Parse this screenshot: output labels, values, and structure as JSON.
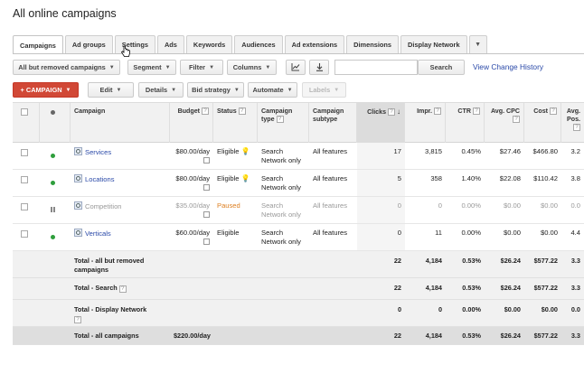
{
  "page": {
    "title": "All online campaigns"
  },
  "tabs": [
    {
      "label": "Campaigns",
      "active": true
    },
    {
      "label": "Ad groups"
    },
    {
      "label": "Settings"
    },
    {
      "label": "Ads"
    },
    {
      "label": "Keywords"
    },
    {
      "label": "Audiences"
    },
    {
      "label": "Ad extensions"
    },
    {
      "label": "Dimensions"
    },
    {
      "label": "Display Network"
    }
  ],
  "toolbar1": {
    "filter_select": "All but removed campaigns",
    "segment": "Segment",
    "filter": "Filter",
    "columns": "Columns",
    "search_value": "",
    "search_button": "Search",
    "view_change_history": "View Change History"
  },
  "toolbar2": {
    "campaign": "+ CAMPAIGN",
    "edit": "Edit",
    "details": "Details",
    "bid_strategy": "Bid strategy",
    "automate": "Automate",
    "labels": "Labels"
  },
  "columns": {
    "campaign": "Campaign",
    "budget": "Budget",
    "status": "Status",
    "campaign_type": "Campaign type",
    "campaign_subtype": "Campaign subtype",
    "clicks": "Clicks",
    "impr": "Impr.",
    "ctr": "CTR",
    "avg_cpc": "Avg. CPC",
    "cost": "Cost",
    "avg_pos": "Avg. Pos."
  },
  "rows": [
    {
      "name": "Services",
      "budget": "$80.00/day",
      "status": "Eligible",
      "type": "Search Network only",
      "subtype": "All features",
      "clicks": "17",
      "impr": "3,815",
      "ctr": "0.45%",
      "cpc": "$27.46",
      "cost": "$466.80",
      "pos": "3.2",
      "state": "enabled"
    },
    {
      "name": "Locations",
      "budget": "$80.00/day",
      "status": "Eligible",
      "type": "Search Network only",
      "subtype": "All features",
      "clicks": "5",
      "impr": "358",
      "ctr": "1.40%",
      "cpc": "$22.08",
      "cost": "$110.42",
      "pos": "3.8",
      "state": "enabled"
    },
    {
      "name": "Competition",
      "budget": "$35.00/day",
      "status": "Paused",
      "type": "Search Network only",
      "subtype": "All features",
      "clicks": "0",
      "impr": "0",
      "ctr": "0.00%",
      "cpc": "$0.00",
      "cost": "$0.00",
      "pos": "0.0",
      "state": "paused"
    },
    {
      "name": "Verticals",
      "budget": "$60.00/day",
      "status": "Eligible",
      "type": "Search Network only",
      "subtype": "All features",
      "clicks": "0",
      "impr": "11",
      "ctr": "0.00%",
      "cpc": "$0.00",
      "cost": "$0.00",
      "pos": "4.4",
      "state": "enabled"
    }
  ],
  "totals": [
    {
      "label": "Total - all but removed campaigns",
      "budget": "",
      "clicks": "22",
      "impr": "4,184",
      "ctr": "0.53%",
      "cpc": "$26.24",
      "cost": "$577.22",
      "pos": "3.3"
    },
    {
      "label": "Total - Search",
      "budget": "",
      "clicks": "22",
      "impr": "4,184",
      "ctr": "0.53%",
      "cpc": "$26.24",
      "cost": "$577.22",
      "pos": "3.3"
    },
    {
      "label": "Total - Display Network",
      "budget": "",
      "clicks": "0",
      "impr": "0",
      "ctr": "0.00%",
      "cpc": "$0.00",
      "cost": "$0.00",
      "pos": "0.0"
    },
    {
      "label": "Total - all campaigns",
      "budget": "$220.00/day",
      "clicks": "22",
      "impr": "4,184",
      "ctr": "0.53%",
      "cpc": "$26.24",
      "cost": "$577.22",
      "pos": "3.3"
    }
  ],
  "colors": {
    "accent_red": "#d14836",
    "link_blue": "#2a49a8",
    "status_dot": "#2e9e3c",
    "paused": "#dd7f20"
  }
}
